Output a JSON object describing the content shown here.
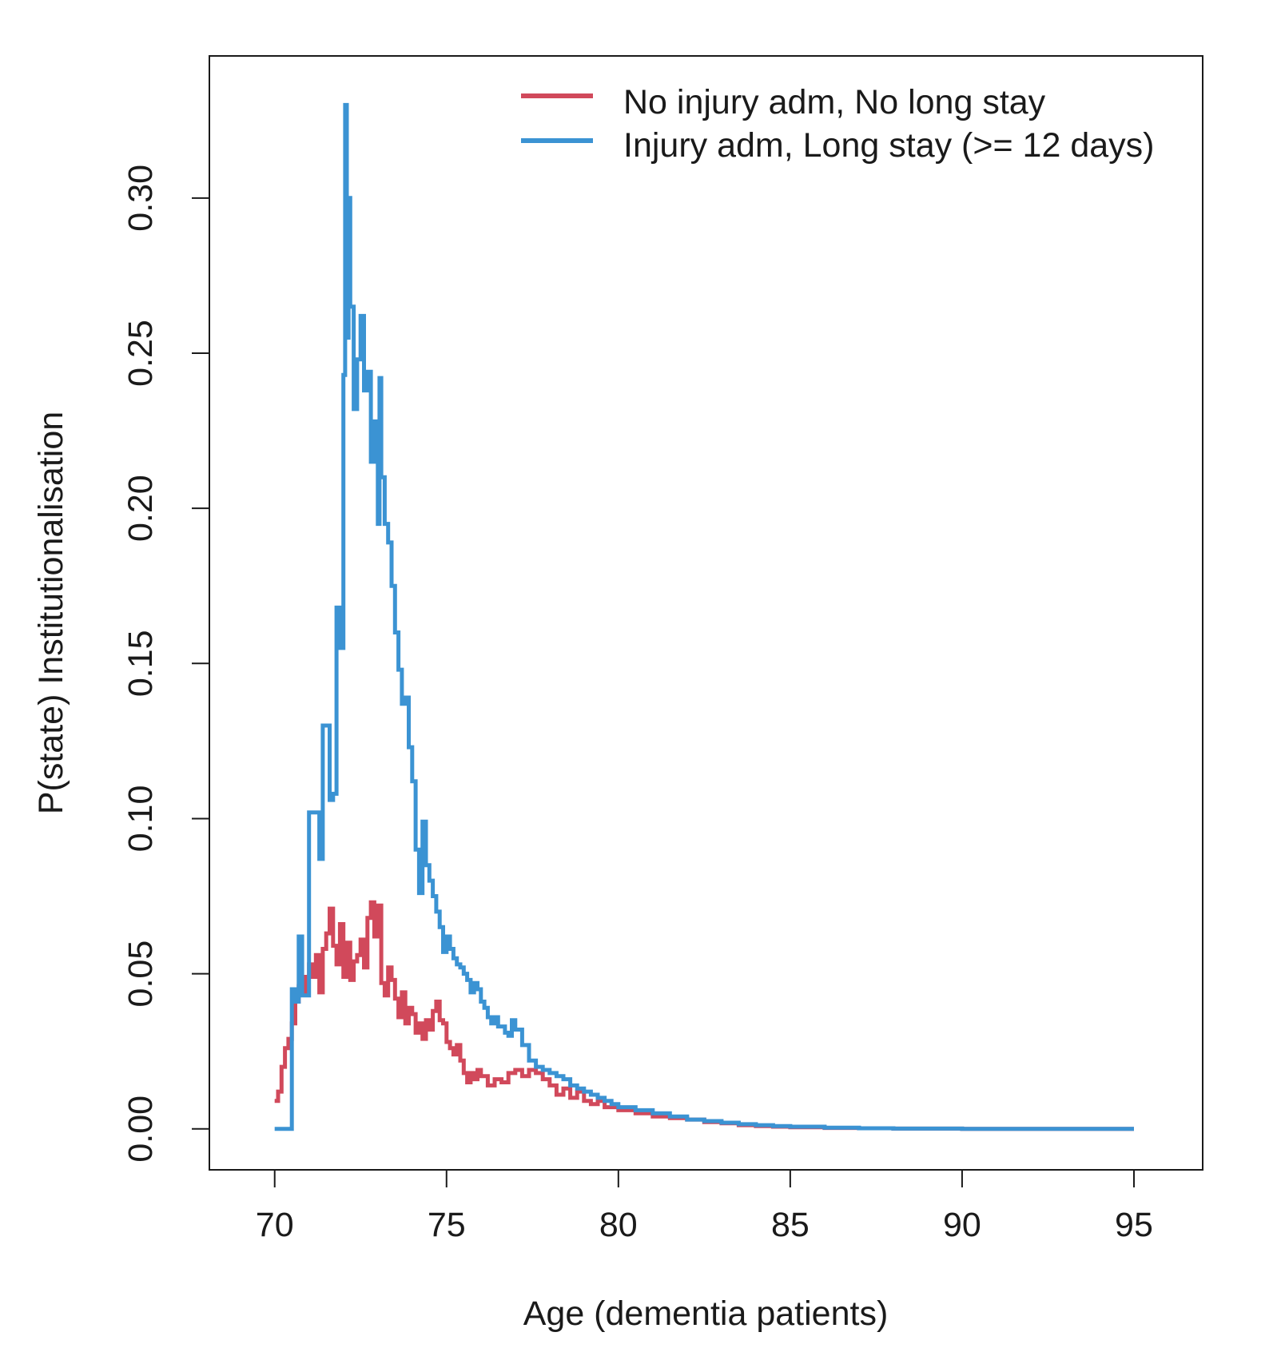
{
  "chart_data": {
    "type": "line",
    "line_style": "step",
    "xlabel": "Age (dementia patients)",
    "ylabel": "P(state) Institutionalisation",
    "xlim": [
      68.1,
      97.0
    ],
    "ylim": [
      -0.0132,
      0.3458
    ],
    "x_ticks": [
      70,
      75,
      80,
      85,
      90,
      95
    ],
    "x_tick_labels": [
      "70",
      "75",
      "80",
      "85",
      "90",
      "95"
    ],
    "y_ticks": [
      0.0,
      0.05,
      0.1,
      0.15,
      0.2,
      0.25,
      0.3
    ],
    "y_tick_labels": [
      "0.00",
      "0.05",
      "0.10",
      "0.15",
      "0.20",
      "0.25",
      "0.30"
    ],
    "grid": false,
    "legend_position": "top-right",
    "series": [
      {
        "name": "No injury adm, No long stay",
        "color": "#D1495B",
        "x": [
          70.0,
          70.1,
          70.2,
          70.3,
          70.4,
          70.5,
          70.6,
          70.7,
          70.8,
          70.9,
          71.0,
          71.1,
          71.2,
          71.3,
          71.4,
          71.5,
          71.6,
          71.7,
          71.8,
          71.9,
          72.0,
          72.1,
          72.2,
          72.3,
          72.4,
          72.5,
          72.6,
          72.7,
          72.8,
          72.9,
          73.0,
          73.1,
          73.2,
          73.3,
          73.4,
          73.5,
          73.6,
          73.7,
          73.8,
          73.9,
          74.0,
          74.1,
          74.2,
          74.3,
          74.4,
          74.5,
          74.6,
          74.7,
          74.8,
          74.9,
          75.0,
          75.1,
          75.2,
          75.3,
          75.4,
          75.5,
          75.6,
          75.7,
          75.8,
          75.9,
          76.0,
          76.2,
          76.4,
          76.6,
          76.8,
          77.0,
          77.2,
          77.4,
          77.6,
          77.8,
          78.0,
          78.2,
          78.4,
          78.6,
          78.8,
          79.0,
          79.2,
          79.4,
          79.6,
          79.8,
          80.0,
          80.5,
          81.0,
          81.5,
          82.0,
          82.5,
          83.0,
          83.5,
          84.0,
          84.5,
          85.0,
          86.0,
          87.0,
          88.0,
          90.0,
          92.0,
          95.0
        ],
        "values": [
          0.009,
          0.012,
          0.02,
          0.026,
          0.029,
          0.034,
          0.041,
          0.046,
          0.044,
          0.049,
          0.053,
          0.049,
          0.056,
          0.044,
          0.058,
          0.063,
          0.071,
          0.059,
          0.053,
          0.066,
          0.049,
          0.06,
          0.048,
          0.054,
          0.056,
          0.061,
          0.052,
          0.068,
          0.073,
          0.062,
          0.072,
          0.047,
          0.043,
          0.052,
          0.048,
          0.042,
          0.036,
          0.044,
          0.034,
          0.039,
          0.037,
          0.031,
          0.034,
          0.029,
          0.035,
          0.032,
          0.038,
          0.041,
          0.035,
          0.034,
          0.028,
          0.026,
          0.024,
          0.027,
          0.022,
          0.018,
          0.015,
          0.018,
          0.016,
          0.019,
          0.017,
          0.014,
          0.016,
          0.015,
          0.018,
          0.019,
          0.017,
          0.019,
          0.018,
          0.016,
          0.014,
          0.011,
          0.013,
          0.01,
          0.012,
          0.009,
          0.008,
          0.009,
          0.007,
          0.007,
          0.006,
          0.005,
          0.004,
          0.0035,
          0.003,
          0.0022,
          0.0018,
          0.0012,
          0.0009,
          0.0007,
          0.0005,
          0.0003,
          0.0002,
          0.0001,
          0.0,
          0.0,
          0.0
        ]
      },
      {
        "name": "Injury adm, Long stay (>= 12 days)",
        "color": "#3B93D3",
        "x": [
          70.0,
          70.2,
          70.4,
          70.5,
          70.6,
          70.7,
          70.8,
          71.0,
          71.2,
          71.3,
          71.4,
          71.5,
          71.6,
          71.7,
          71.8,
          71.9,
          72.0,
          72.05,
          72.1,
          72.15,
          72.2,
          72.3,
          72.4,
          72.5,
          72.6,
          72.7,
          72.8,
          72.9,
          73.0,
          73.05,
          73.1,
          73.2,
          73.3,
          73.4,
          73.5,
          73.6,
          73.7,
          73.8,
          73.9,
          74.0,
          74.1,
          74.2,
          74.3,
          74.4,
          74.5,
          74.6,
          74.7,
          74.8,
          74.9,
          75.0,
          75.1,
          75.2,
          75.3,
          75.4,
          75.5,
          75.6,
          75.7,
          75.8,
          75.9,
          76.0,
          76.1,
          76.2,
          76.3,
          76.4,
          76.5,
          76.6,
          76.7,
          76.8,
          76.9,
          77.0,
          77.2,
          77.4,
          77.6,
          77.8,
          78.0,
          78.2,
          78.4,
          78.6,
          78.8,
          79.0,
          79.2,
          79.4,
          79.6,
          79.8,
          80.0,
          80.5,
          81.0,
          81.5,
          82.0,
          82.5,
          83.0,
          83.5,
          84.0,
          84.5,
          85.0,
          86.0,
          87.0,
          88.0,
          90.0,
          92.0,
          95.0
        ],
        "values": [
          0.0,
          0.0,
          0.0,
          0.045,
          0.041,
          0.062,
          0.043,
          0.102,
          0.102,
          0.087,
          0.13,
          0.13,
          0.106,
          0.108,
          0.168,
          0.155,
          0.243,
          0.33,
          0.255,
          0.3,
          0.265,
          0.232,
          0.248,
          0.262,
          0.238,
          0.244,
          0.215,
          0.228,
          0.195,
          0.242,
          0.21,
          0.195,
          0.189,
          0.175,
          0.16,
          0.148,
          0.137,
          0.139,
          0.123,
          0.112,
          0.09,
          0.076,
          0.099,
          0.085,
          0.08,
          0.075,
          0.07,
          0.065,
          0.057,
          0.062,
          0.058,
          0.055,
          0.053,
          0.052,
          0.05,
          0.048,
          0.044,
          0.047,
          0.045,
          0.041,
          0.039,
          0.036,
          0.034,
          0.036,
          0.033,
          0.033,
          0.031,
          0.03,
          0.035,
          0.032,
          0.027,
          0.022,
          0.02,
          0.019,
          0.018,
          0.017,
          0.016,
          0.014,
          0.013,
          0.012,
          0.011,
          0.01,
          0.009,
          0.008,
          0.007,
          0.006,
          0.005,
          0.004,
          0.003,
          0.0025,
          0.002,
          0.0015,
          0.0012,
          0.0009,
          0.0007,
          0.0004,
          0.0002,
          0.0001,
          0.0,
          0.0,
          0.0
        ]
      }
    ]
  }
}
